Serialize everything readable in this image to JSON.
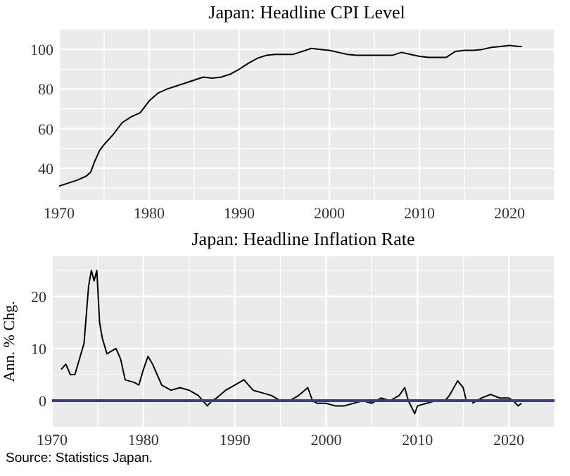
{
  "chart_data": [
    {
      "type": "line",
      "title": "Japan: Headline CPI Level",
      "xlim": [
        1970,
        2025
      ],
      "xticks": [
        1970,
        {
          "value": 1975,
          "label": null
        },
        1980,
        {
          "value": 1985,
          "label": null
        },
        1990,
        {
          "value": 1995,
          "label": null
        },
        2000,
        {
          "value": 2005,
          "label": null
        },
        2010,
        {
          "value": 2015,
          "label": null
        },
        2020,
        {
          "value": 2025,
          "label": null
        }
      ],
      "ylim": [
        24,
        110
      ],
      "yticks": [
        {
          "value": 30,
          "label": null
        },
        40,
        {
          "value": 50,
          "label": null
        },
        60,
        {
          "value": 70,
          "label": null
        },
        80,
        {
          "value": 90,
          "label": null
        },
        100
      ],
      "grid": true,
      "x": [
        1970,
        1971,
        1972,
        1973,
        1973.5,
        1974,
        1974.5,
        1975,
        1976,
        1977,
        1978,
        1979,
        1980,
        1981,
        1982,
        1983,
        1984,
        1985,
        1986,
        1987,
        1988,
        1989,
        1990,
        1991,
        1992,
        1993,
        1994,
        1995,
        1996,
        1997,
        1998,
        1999,
        2000,
        2001,
        2002,
        2003,
        2004,
        2005,
        2006,
        2007,
        2008,
        2009,
        2010,
        2011,
        2012,
        2013,
        2014,
        2015,
        2016,
        2017,
        2018,
        2019,
        2020,
        2021,
        2021.4
      ],
      "series": [
        {
          "color": "#000000",
          "values": [
            31,
            32.5,
            34,
            36,
            38,
            44,
            49,
            52,
            57,
            63,
            66,
            68,
            74,
            78,
            80,
            81.5,
            83,
            84.5,
            86,
            85.5,
            86,
            87.5,
            90,
            93,
            95.5,
            97,
            97.5,
            97.5,
            97.5,
            99,
            100.5,
            100,
            99.5,
            98.5,
            97.5,
            97,
            97,
            97,
            97,
            97,
            98.5,
            97.5,
            96.5,
            96,
            96,
            96,
            99,
            99.5,
            99.5,
            100,
            101,
            101.5,
            102,
            101.5,
            101.5
          ]
        }
      ]
    },
    {
      "type": "line",
      "title": "Japan: Headline Inflation Rate",
      "ylabel": "Ann. % Chg.",
      "xlim": [
        1970,
        2025
      ],
      "xticks": [
        1970,
        {
          "value": 1975,
          "label": null
        },
        1980,
        {
          "value": 1985,
          "label": null
        },
        1990,
        {
          "value": 1995,
          "label": null
        },
        2000,
        {
          "value": 2005,
          "label": null
        },
        2010,
        {
          "value": 2015,
          "label": null
        },
        2020,
        {
          "value": 2025,
          "label": null
        }
      ],
      "ylim": [
        -5,
        27.7
      ],
      "yticks": [
        0,
        {
          "value": 5,
          "label": null
        },
        10,
        {
          "value": 15,
          "label": null
        },
        20,
        {
          "value": 25,
          "label": null
        }
      ],
      "grid": true,
      "x": [
        1971,
        1971.5,
        1972,
        1972.5,
        1973,
        1973.5,
        1974,
        1974.3,
        1974.6,
        1974.9,
        1975.2,
        1975.5,
        1976,
        1977,
        1977.5,
        1978,
        1979,
        1979.5,
        1980,
        1980.5,
        1981,
        1981.5,
        1982,
        1983,
        1984,
        1985,
        1986,
        1987,
        1987.5,
        1988,
        1989,
        1990,
        1991,
        1992,
        1993,
        1994,
        1995,
        1996,
        1997,
        1998,
        1998.5,
        1999,
        2000,
        2001,
        2002,
        2003,
        2004,
        2005,
        2006,
        2007,
        2008,
        2008.6,
        2009,
        2009.7,
        2010,
        2011,
        2012,
        2013,
        2013.5,
        2014.4,
        2015,
        2015.3,
        2015.6,
        2016,
        2017,
        2018,
        2019,
        2020,
        2020.5,
        2021,
        2021.4
      ],
      "series": [
        {
          "color": "#000000",
          "values": [
            6,
            7,
            5,
            5,
            8,
            11,
            22,
            25,
            23,
            25,
            15,
            12,
            9,
            10,
            8,
            4,
            3.5,
            3,
            6,
            8.5,
            7,
            5,
            3,
            2,
            2.5,
            2,
            1,
            -1,
            0,
            0.5,
            2,
            3,
            4,
            2,
            1.5,
            1,
            0,
            0,
            1,
            2.5,
            0,
            -0.5,
            -0.5,
            -1,
            -1,
            -0.5,
            0,
            -0.5,
            0.5,
            0,
            1,
            2.5,
            0,
            -2.5,
            -1,
            -0.5,
            0,
            0,
            1,
            3.8,
            2.5,
            0.3,
            null,
            -0.5,
            0.5,
            1.2,
            0.5,
            0.5,
            0,
            -1,
            -0.5
          ]
        }
      ],
      "ref_lines": [
        {
          "axis": "y",
          "value": 0,
          "color": "#3b3b8c"
        }
      ],
      "annotations": [
        "Source: Statistics Japan."
      ]
    }
  ]
}
